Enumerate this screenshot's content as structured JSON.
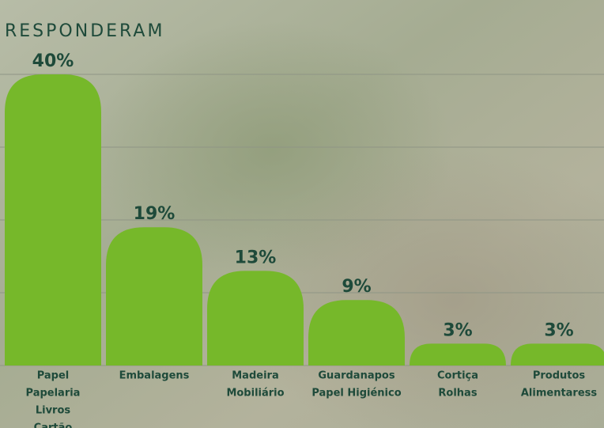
{
  "chart_data": {
    "type": "bar",
    "subtitle": "RESPONDERAM",
    "categories": [
      [
        "Papel",
        "Papelaria",
        "Livros",
        "Cartão"
      ],
      [
        "Embalagens"
      ],
      [
        "Madeira",
        "Mobiliário"
      ],
      [
        "Guardanapos",
        "Papel Higiénico"
      ],
      [
        "Cortiça",
        "Rolhas"
      ],
      [
        "Produtos",
        "Alimentaress"
      ]
    ],
    "values": [
      40,
      19,
      13,
      9,
      3,
      3
    ],
    "value_labels": [
      "40%",
      "19%",
      "13%",
      "9%",
      "3%",
      "3%"
    ],
    "color": "#76b82a",
    "ylim": [
      0,
      40
    ],
    "yticks": [
      0,
      10,
      20,
      30,
      40
    ],
    "grid": true
  }
}
